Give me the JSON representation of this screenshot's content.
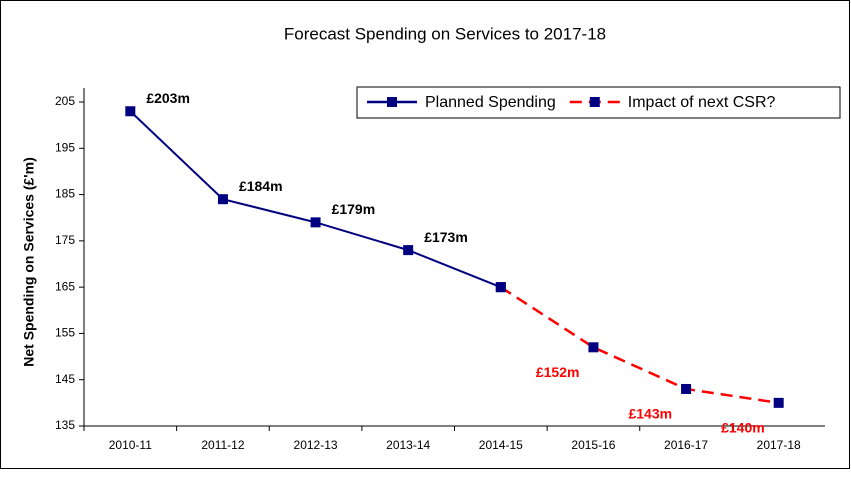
{
  "chart_data": {
    "type": "line",
    "title": "Forecast Spending on Services to 2017-18",
    "y_label": "Net Spending on Services (£'m)",
    "categories": [
      "2010-11",
      "2011-12",
      "2012-13",
      "2013-14",
      "2014-15",
      "2015-16",
      "2016-17",
      "2017-18"
    ],
    "series": [
      {
        "name": "Planned Spending",
        "color": "#000080",
        "dashed": false,
        "values": [
          203,
          184,
          179,
          173,
          165,
          null,
          null,
          null
        ],
        "value_labels": [
          "£203m",
          "£184m",
          "£179m",
          "£173m",
          null,
          null,
          null,
          null
        ]
      },
      {
        "name": "Impact of next CSR?",
        "color": "#ff0000",
        "dashed": true,
        "values": [
          null,
          null,
          null,
          null,
          165,
          152,
          143,
          140
        ],
        "value_labels": [
          null,
          null,
          null,
          null,
          null,
          "£152m",
          "£143m",
          "£140m"
        ]
      }
    ],
    "marker_color": "#000080",
    "ylim": [
      135,
      205
    ],
    "yticks": [
      135,
      145,
      155,
      165,
      175,
      185,
      195,
      205
    ],
    "legend": "top-right"
  }
}
